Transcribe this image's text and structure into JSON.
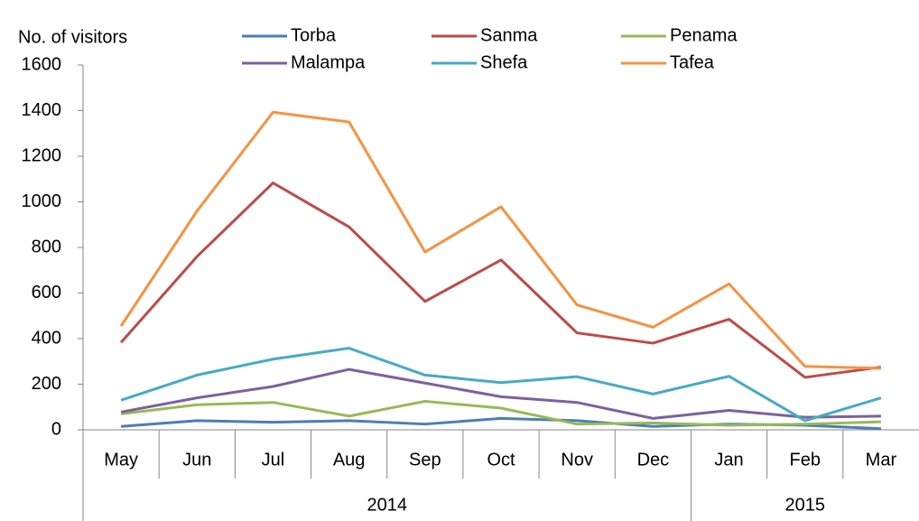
{
  "chart_data": {
    "type": "line",
    "y_label": "No. of visitors",
    "categories": [
      "May",
      "Jun",
      "Jul",
      "Aug",
      "Sep",
      "Oct",
      "Nov",
      "Dec",
      "Jan",
      "Feb",
      "Mar"
    ],
    "groups": [
      "2014",
      null,
      null,
      null,
      null,
      null,
      null,
      null,
      "2015",
      null,
      null
    ],
    "series": [
      {
        "name": "Torba",
        "color": "#4a7ebb",
        "values": [
          15,
          40,
          33,
          40,
          25,
          50,
          40,
          15,
          25,
          20,
          5
        ]
      },
      {
        "name": "Sanma",
        "color": "#be4b48",
        "values": [
          383,
          760,
          1083,
          890,
          563,
          745,
          425,
          380,
          485,
          230,
          275
        ]
      },
      {
        "name": "Penama",
        "color": "#98b954",
        "values": [
          70,
          110,
          120,
          60,
          125,
          95,
          25,
          30,
          20,
          25,
          35
        ]
      },
      {
        "name": "Malampa",
        "color": "#7d60a0",
        "values": [
          78,
          140,
          190,
          265,
          205,
          145,
          120,
          50,
          85,
          55,
          60
        ]
      },
      {
        "name": "Shefa",
        "color": "#46aac5",
        "values": [
          130,
          240,
          310,
          358,
          240,
          207,
          233,
          157,
          235,
          40,
          140
        ]
      },
      {
        "name": "Tafea",
        "color": "#f69240",
        "values": [
          455,
          960,
          1393,
          1350,
          780,
          978,
          548,
          450,
          640,
          278,
          270
        ]
      }
    ],
    "ylim": [
      0,
      1600
    ],
    "yticks": [
      0,
      200,
      400,
      600,
      800,
      1000,
      1200,
      1400,
      1600
    ],
    "grid": false
  }
}
